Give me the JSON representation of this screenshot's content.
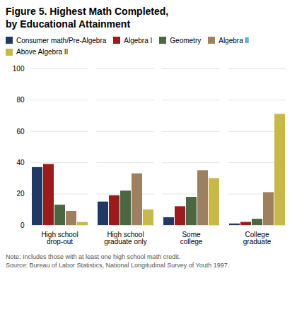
{
  "chart_data": {
    "type": "bar",
    "title": "Figure 5. Highest Math Completed,\nby Educational Attainment",
    "categories": [
      "High school\ndrop-out",
      "High school\ngraduate only",
      "Some\ncollege",
      "College\ngraduate"
    ],
    "series": [
      {
        "name": "Consumer math/Pre-Algebra",
        "color": "#1f3864",
        "values": [
          37,
          15,
          5,
          1
        ]
      },
      {
        "name": "Algebra I",
        "color": "#9b1c1c",
        "values": [
          39,
          19,
          12,
          2
        ]
      },
      {
        "name": "Geometry",
        "color": "#4a6741",
        "values": [
          13,
          22,
          18,
          4
        ]
      },
      {
        "name": "Algebra II",
        "color": "#9c8060",
        "values": [
          9,
          33,
          35,
          21
        ]
      },
      {
        "name": "Above Algebra II",
        "color": "#c8b84a",
        "values": [
          2,
          10,
          30,
          71
        ]
      }
    ],
    "ylim": [
      0,
      100
    ],
    "yticks": [
      0,
      20,
      40,
      60,
      80,
      100
    ],
    "grid": true,
    "legend": "upper left",
    "note": "Note: Includes those with at least one high school math credit.\nSource: Bureau of Labor Statistics, National Longitudinal Survey of Youth 1997."
  }
}
